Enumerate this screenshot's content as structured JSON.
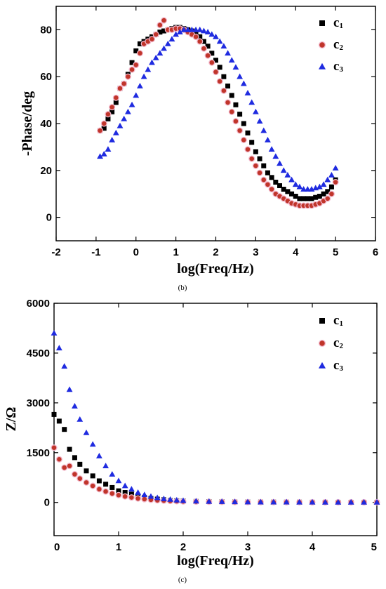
{
  "chart_data": [
    {
      "type": "scatter",
      "caption": "(b)",
      "xlabel": "log(Freq/Hz)",
      "ylabel": "-Phase/deg",
      "xlim": [
        -2,
        6
      ],
      "ylim": [
        -10,
        90
      ],
      "xticks": [
        -2,
        -1,
        0,
        1,
        2,
        3,
        4,
        5,
        6
      ],
      "yticks": [
        0,
        20,
        40,
        60,
        80
      ],
      "legend_position": "top-right",
      "series": [
        {
          "name": "c",
          "sub": "1",
          "marker": "square",
          "color": "#000000",
          "x": [
            -0.9,
            -0.8,
            -0.7,
            -0.6,
            -0.5,
            -0.4,
            -0.3,
            -0.2,
            -0.1,
            0,
            0.1,
            0.2,
            0.3,
            0.4,
            0.5,
            0.6,
            0.7,
            0.8,
            0.9,
            1.0,
            1.1,
            1.2,
            1.3,
            1.4,
            1.5,
            1.6,
            1.7,
            1.8,
            1.9,
            2.0,
            2.1,
            2.2,
            2.3,
            2.4,
            2.5,
            2.6,
            2.7,
            2.8,
            2.9,
            3.0,
            3.1,
            3.2,
            3.3,
            3.4,
            3.5,
            3.6,
            3.7,
            3.8,
            3.9,
            4.0,
            4.1,
            4.2,
            4.3,
            4.4,
            4.5,
            4.6,
            4.7,
            4.8,
            4.9,
            5.0
          ],
          "y": [
            37,
            38,
            42,
            45,
            49,
            55,
            57,
            61,
            66,
            71,
            74,
            75,
            76,
            77,
            78,
            79,
            79.5,
            80,
            80.5,
            81,
            81,
            80.5,
            80,
            79.5,
            78,
            77,
            75,
            73,
            70,
            67,
            64,
            60,
            56,
            52,
            48,
            44,
            40,
            36,
            32,
            28,
            25,
            22,
            19,
            17,
            15,
            13.5,
            12,
            11,
            10,
            9,
            8,
            8,
            8,
            8,
            8.5,
            9,
            10,
            11,
            13,
            16
          ]
        },
        {
          "name": "c",
          "sub": "2",
          "marker": "circle",
          "color": "#c0352a",
          "x": [
            -0.9,
            -0.8,
            -0.7,
            -0.6,
            -0.5,
            -0.4,
            -0.3,
            -0.2,
            -0.1,
            0,
            0.1,
            0.2,
            0.3,
            0.4,
            0.5,
            0.6,
            0.7,
            0.8,
            0.9,
            1.0,
            1.1,
            1.2,
            1.3,
            1.4,
            1.5,
            1.6,
            1.7,
            1.8,
            1.9,
            2.0,
            2.1,
            2.2,
            2.3,
            2.4,
            2.5,
            2.6,
            2.7,
            2.8,
            2.9,
            3.0,
            3.1,
            3.2,
            3.3,
            3.4,
            3.5,
            3.6,
            3.7,
            3.8,
            3.9,
            4.0,
            4.1,
            4.2,
            4.3,
            4.4,
            4.5,
            4.6,
            4.7,
            4.8,
            4.9,
            5.0
          ],
          "y": [
            37,
            40,
            44,
            47,
            51,
            55,
            57,
            60,
            63,
            65,
            70,
            74,
            75,
            76,
            78,
            82,
            84,
            80,
            80,
            80.5,
            80.5,
            80,
            79,
            78,
            77,
            75,
            72,
            69,
            66,
            62,
            58,
            54,
            49,
            45,
            41,
            37,
            33,
            29,
            25,
            22,
            19,
            16,
            14,
            12,
            10,
            9,
            8,
            7,
            6,
            5.5,
            5,
            5,
            5,
            5,
            5.5,
            6,
            7,
            8,
            10,
            15
          ]
        },
        {
          "name": "c",
          "sub": "3",
          "marker": "triangle",
          "color": "#1f2be0",
          "x": [
            -0.9,
            -0.8,
            -0.7,
            -0.6,
            -0.5,
            -0.4,
            -0.3,
            -0.2,
            -0.1,
            0,
            0.1,
            0.2,
            0.3,
            0.4,
            0.5,
            0.6,
            0.7,
            0.8,
            0.9,
            1.0,
            1.1,
            1.2,
            1.3,
            1.4,
            1.5,
            1.6,
            1.7,
            1.8,
            1.9,
            2.0,
            2.1,
            2.2,
            2.3,
            2.4,
            2.5,
            2.6,
            2.7,
            2.8,
            2.9,
            3.0,
            3.1,
            3.2,
            3.3,
            3.4,
            3.5,
            3.6,
            3.7,
            3.8,
            3.9,
            4.0,
            4.1,
            4.2,
            4.3,
            4.4,
            4.5,
            4.6,
            4.7,
            4.8,
            4.9,
            5.0
          ],
          "y": [
            26,
            27,
            29,
            33,
            36,
            39,
            42,
            45,
            48,
            52,
            56,
            60,
            63,
            66,
            68,
            70,
            72,
            74,
            76,
            78,
            79,
            80,
            80,
            80,
            80,
            80,
            79.5,
            79,
            78,
            77,
            75,
            73,
            70,
            67,
            64,
            60,
            57,
            53,
            49,
            45,
            41,
            37,
            33,
            29,
            26,
            23,
            20,
            18,
            16,
            14,
            13,
            12,
            12,
            12,
            12.5,
            13,
            14,
            16,
            18,
            21
          ]
        }
      ]
    },
    {
      "type": "scatter",
      "caption": "(c)",
      "xlabel": "log(Freq/Hz)",
      "ylabel": "Z/Ω",
      "xlim": [
        0,
        5
      ],
      "ylim": [
        -1000,
        6000
      ],
      "xticks": [
        0,
        1,
        2,
        3,
        4,
        5
      ],
      "yticks": [
        0,
        1500,
        3000,
        4500,
        6000
      ],
      "legend_position": "top-right",
      "series": [
        {
          "name": "c",
          "sub": "1",
          "marker": "square",
          "color": "#000000",
          "x": [
            0,
            0.08,
            0.16,
            0.24,
            0.32,
            0.4,
            0.5,
            0.6,
            0.7,
            0.8,
            0.9,
            1.0,
            1.1,
            1.2,
            1.3,
            1.4,
            1.5,
            1.6,
            1.7,
            1.8,
            1.9,
            2.0,
            2.2,
            2.4,
            2.6,
            2.8,
            3.0,
            3.2,
            3.4,
            3.6,
            3.8,
            4.0,
            4.2,
            4.4,
            4.6,
            4.8,
            5.0
          ],
          "y": [
            2650,
            2450,
            2200,
            1600,
            1350,
            1150,
            950,
            800,
            650,
            550,
            450,
            350,
            300,
            250,
            200,
            150,
            120,
            100,
            80,
            60,
            50,
            40,
            30,
            25,
            20,
            15,
            12,
            10,
            10,
            8,
            8,
            6,
            6,
            5,
            5,
            5,
            5
          ]
        },
        {
          "name": "c",
          "sub": "2",
          "marker": "circle",
          "color": "#c0352a",
          "x": [
            0,
            0.08,
            0.16,
            0.24,
            0.32,
            0.4,
            0.5,
            0.6,
            0.7,
            0.8,
            0.9,
            1.0,
            1.1,
            1.2,
            1.3,
            1.4,
            1.5,
            1.6,
            1.7,
            1.8,
            1.9,
            2.0,
            2.2,
            2.4,
            2.6,
            2.8,
            3.0,
            3.2,
            3.4,
            3.6,
            3.8,
            4.0,
            4.2,
            4.4,
            4.6,
            4.8,
            5.0
          ],
          "y": [
            1650,
            1300,
            1050,
            1100,
            850,
            720,
            600,
            500,
            400,
            330,
            270,
            220,
            180,
            150,
            120,
            100,
            80,
            65,
            55,
            45,
            38,
            30,
            24,
            20,
            16,
            12,
            10,
            9,
            8,
            7,
            6,
            5,
            5,
            5,
            5,
            5,
            5
          ]
        },
        {
          "name": "c",
          "sub": "3",
          "marker": "triangle",
          "color": "#1f2be0",
          "x": [
            0,
            0.08,
            0.16,
            0.24,
            0.32,
            0.4,
            0.5,
            0.6,
            0.7,
            0.8,
            0.9,
            1.0,
            1.1,
            1.2,
            1.3,
            1.4,
            1.5,
            1.6,
            1.7,
            1.8,
            1.9,
            2.0,
            2.2,
            2.4,
            2.6,
            2.8,
            3.0,
            3.2,
            3.4,
            3.6,
            3.8,
            4.0,
            4.2,
            4.4,
            4.6,
            4.8,
            5.0
          ],
          "y": [
            5100,
            4650,
            4100,
            3400,
            2900,
            2500,
            2100,
            1750,
            1400,
            1100,
            850,
            650,
            500,
            400,
            300,
            230,
            180,
            140,
            110,
            90,
            70,
            55,
            40,
            30,
            25,
            20,
            15,
            12,
            10,
            10,
            8,
            8,
            6,
            6,
            5,
            5,
            5
          ]
        }
      ]
    }
  ]
}
